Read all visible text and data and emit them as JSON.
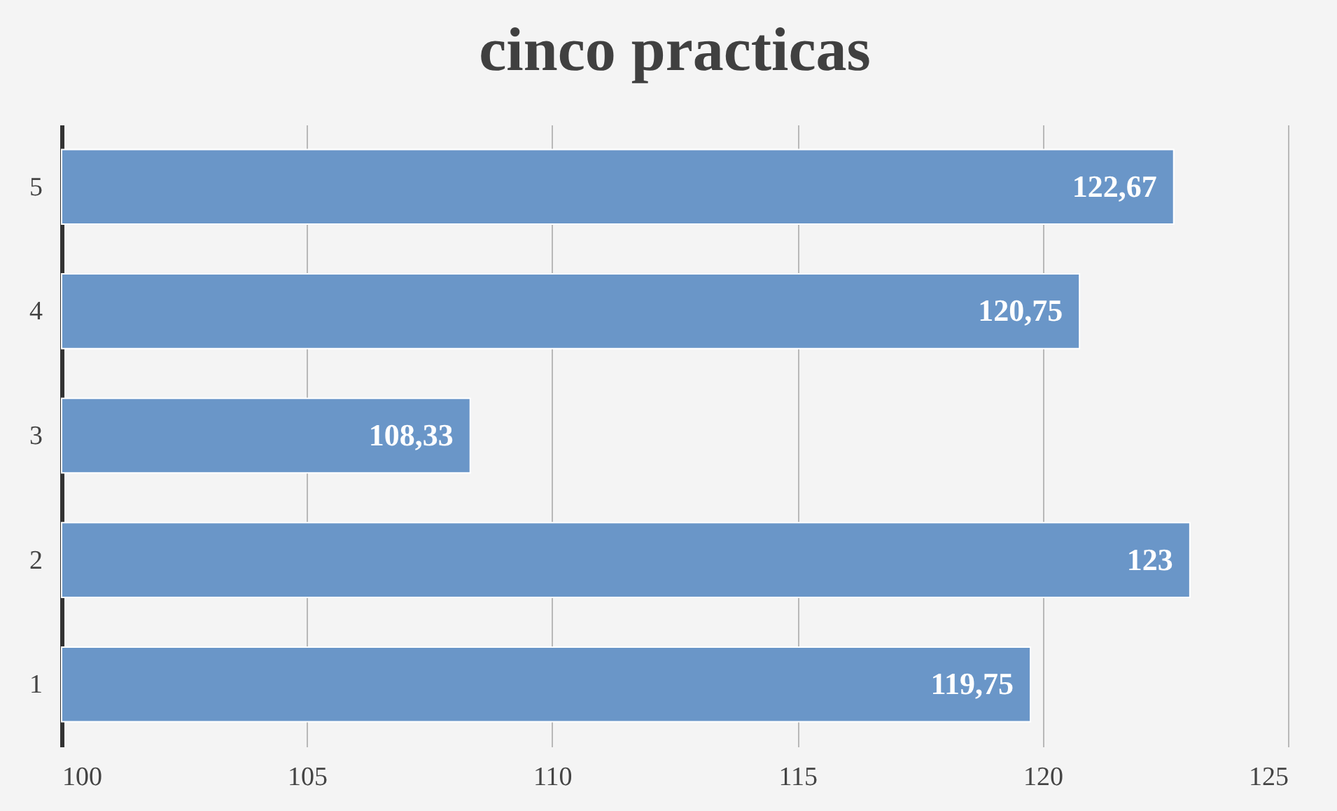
{
  "chart_data": {
    "type": "bar",
    "orientation": "horizontal",
    "title": "cinco practicas",
    "categories": [
      "5",
      "4",
      "3",
      "2",
      "1"
    ],
    "values": [
      122.67,
      120.75,
      108.33,
      123,
      119.75
    ],
    "value_labels": [
      "122,67",
      "120,75",
      "108,33",
      "123",
      "119,75"
    ],
    "color": "#6a96c8",
    "xlim": [
      100,
      125
    ],
    "xticks": [
      100,
      105,
      110,
      115,
      120,
      125
    ],
    "grid": "x"
  }
}
